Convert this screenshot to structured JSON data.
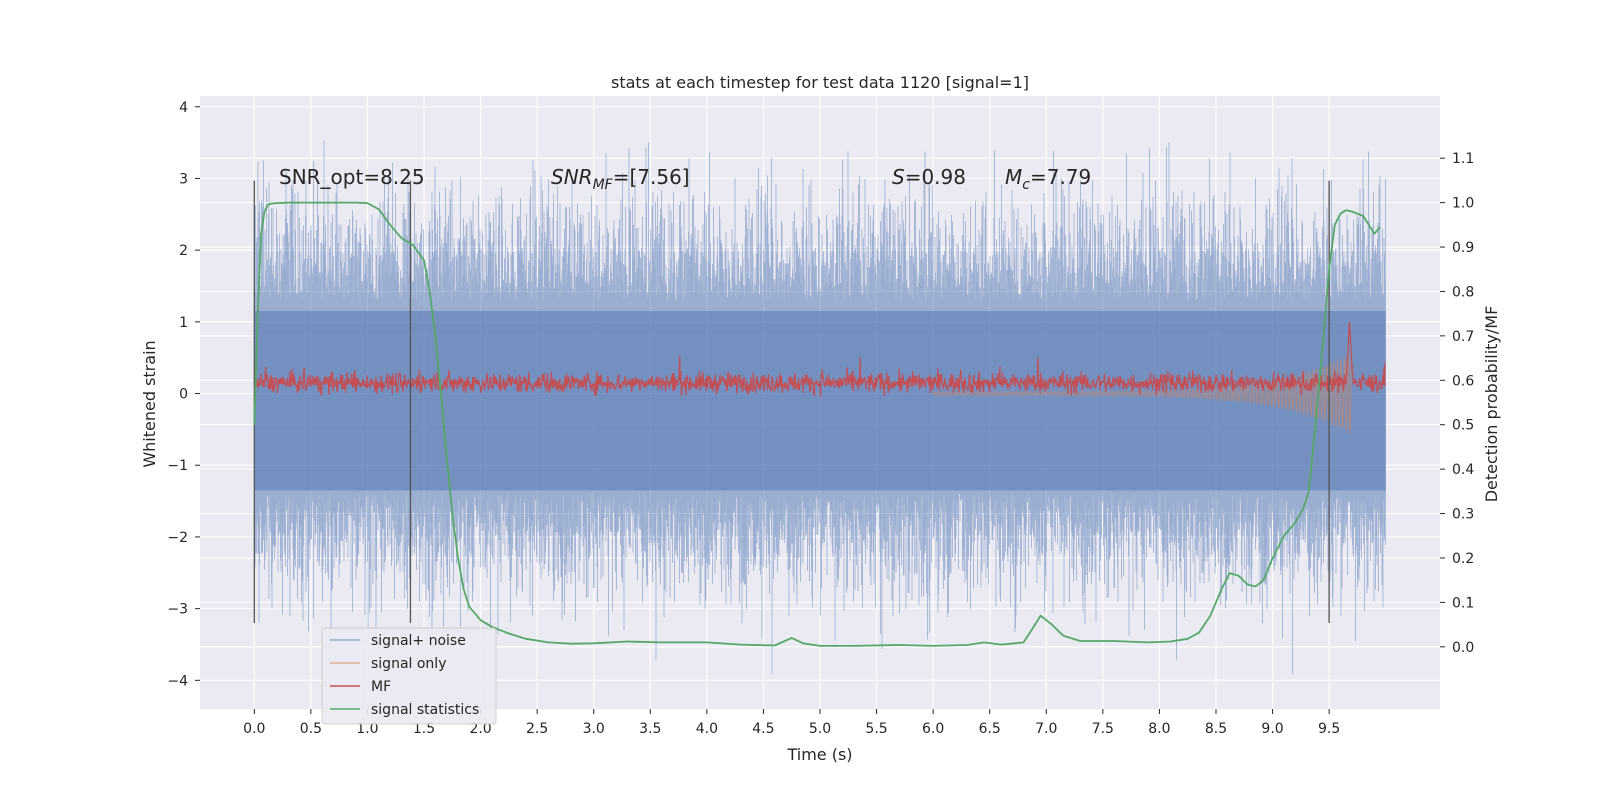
{
  "chart_data": {
    "type": "line",
    "title": "stats at each timestep for test data 1120 [signal=1]",
    "xlabel": "Time (s)",
    "ylabel": "Whitened strain",
    "y2label": "Detection probability/MF",
    "xlim": [
      -0.48,
      10.48
    ],
    "ylim": [
      -4.4,
      4.15
    ],
    "y2lim": [
      -0.14,
      1.24
    ],
    "xticks": [
      0.0,
      0.5,
      1.0,
      1.5,
      2.0,
      2.5,
      3.0,
      3.5,
      4.0,
      4.5,
      5.0,
      5.5,
      6.0,
      6.5,
      7.0,
      7.5,
      8.0,
      8.5,
      9.0,
      9.5
    ],
    "xtick_labels": [
      "0.0",
      "0.5",
      "1.0",
      "1.5",
      "2.0",
      "2.5",
      "3.0",
      "3.5",
      "4.0",
      "4.5",
      "5.0",
      "5.5",
      "6.0",
      "6.5",
      "7.0",
      "7.5",
      "8.0",
      "8.5",
      "9.0",
      "9.5"
    ],
    "yticks": [
      4,
      3,
      2,
      1,
      0,
      -1,
      -2,
      -3,
      -4
    ],
    "ytick_labels": [
      "4",
      "3",
      "2",
      "1",
      "0",
      "−1",
      "−2",
      "−3",
      "−4"
    ],
    "y2ticks": [
      1.1,
      1.0,
      0.9,
      0.8,
      0.7,
      0.6,
      0.5,
      0.4,
      0.3,
      0.2,
      0.1,
      0.0
    ],
    "y2tick_labels": [
      "1.1",
      "1.0",
      "0.9",
      "0.8",
      "0.7",
      "0.6",
      "0.5",
      "0.4",
      "0.3",
      "0.2",
      "0.1",
      "0.0"
    ],
    "grid": true,
    "legend_position": "lower-left",
    "annotations": {
      "snr_opt": "SNR_opt=8.25",
      "snr_mf_main": "SNR",
      "snr_mf_sub": "MF",
      "snr_mf_value": "=[7.56]",
      "s_main": "S",
      "s_value": "=0.98",
      "mc_main": "M",
      "mc_sub": "c",
      "mc_value": "=7.79"
    },
    "vertical_markers": [
      0.0,
      1.38,
      9.5
    ],
    "noise_envelope": {
      "x_range": [
        0.0,
        10.0
      ],
      "typical_range": [
        -1.35,
        1.15
      ],
      "spike_max": 3.8,
      "spike_min": -4.0
    },
    "mf_band": {
      "x_range": [
        0.0,
        10.0
      ],
      "center": 0.15,
      "spread": 0.14,
      "peak_x": 9.68,
      "peak_y": 1.0
    },
    "signal_only": {
      "x_range": [
        6.0,
        9.7
      ],
      "final_amplitude": 0.55
    },
    "series": [
      {
        "name": "signal+ noise",
        "color": "#4c72b0",
        "style": "noise"
      },
      {
        "name": "signal only",
        "color": "#dd8452",
        "style": "chirp"
      },
      {
        "name": "MF",
        "color": "#c44e52",
        "style": "mf"
      },
      {
        "name": "signal statistics",
        "color": "#55a868",
        "axis": "right",
        "x": [
          0.0,
          0.03,
          0.06,
          0.09,
          0.12,
          0.15,
          0.2,
          0.3,
          0.45,
          0.6,
          0.75,
          0.9,
          1.0,
          1.1,
          1.2,
          1.3,
          1.4,
          1.5,
          1.55,
          1.6,
          1.65,
          1.7,
          1.75,
          1.8,
          1.85,
          1.9,
          2.0,
          2.1,
          2.25,
          2.4,
          2.6,
          2.8,
          3.0,
          3.3,
          3.6,
          4.0,
          4.3,
          4.6,
          4.75,
          4.85,
          5.0,
          5.3,
          5.7,
          6.0,
          6.3,
          6.45,
          6.6,
          6.8,
          6.9,
          6.95,
          7.05,
          7.15,
          7.3,
          7.6,
          7.9,
          8.1,
          8.25,
          8.35,
          8.45,
          8.55,
          8.62,
          8.7,
          8.78,
          8.85,
          8.92,
          9.0,
          9.1,
          9.2,
          9.27,
          9.32,
          9.38,
          9.45,
          9.5,
          9.55,
          9.6,
          9.65,
          9.7,
          9.8,
          9.9,
          9.95
        ],
        "y": [
          0.5,
          0.75,
          0.93,
          0.98,
          0.995,
          0.998,
          0.999,
          1.0,
          1.0,
          1.0,
          1.0,
          1.0,
          0.999,
          0.985,
          0.95,
          0.92,
          0.905,
          0.87,
          0.8,
          0.7,
          0.57,
          0.43,
          0.3,
          0.2,
          0.13,
          0.09,
          0.06,
          0.045,
          0.03,
          0.018,
          0.01,
          0.007,
          0.008,
          0.012,
          0.01,
          0.01,
          0.005,
          0.003,
          0.02,
          0.008,
          0.002,
          0.002,
          0.004,
          0.002,
          0.004,
          0.01,
          0.005,
          0.01,
          0.05,
          0.07,
          0.05,
          0.025,
          0.013,
          0.013,
          0.01,
          0.012,
          0.018,
          0.032,
          0.07,
          0.13,
          0.166,
          0.16,
          0.14,
          0.136,
          0.15,
          0.2,
          0.25,
          0.28,
          0.31,
          0.35,
          0.5,
          0.7,
          0.85,
          0.95,
          0.975,
          0.983,
          0.98,
          0.97,
          0.93,
          0.945
        ]
      }
    ]
  }
}
